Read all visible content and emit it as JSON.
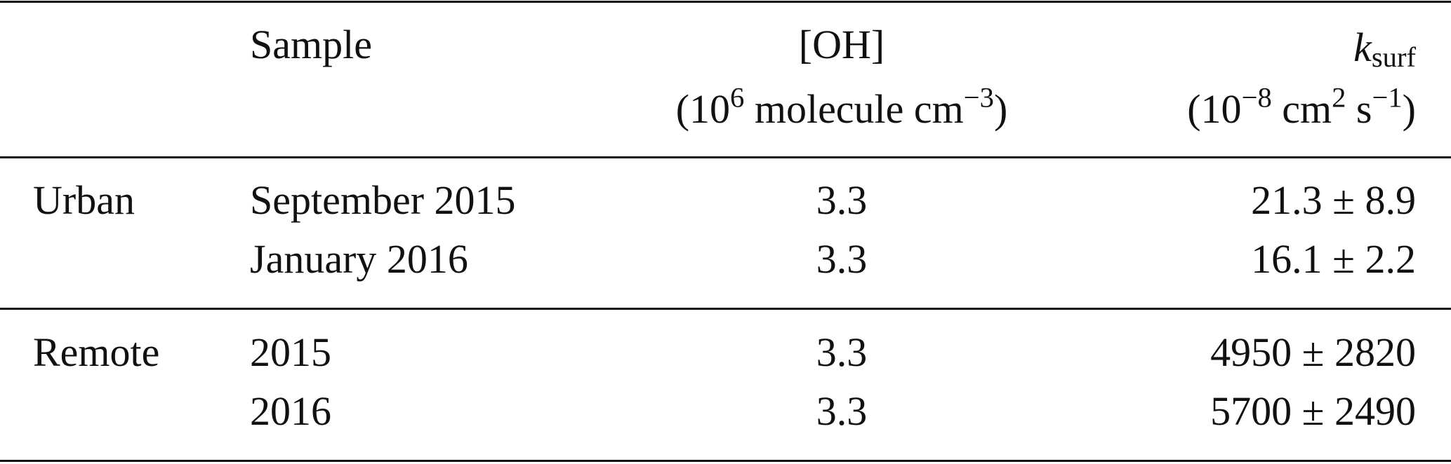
{
  "table": {
    "header": {
      "sample": "Sample",
      "oh": {
        "name": "[OH]",
        "unit": [
          "(10",
          "6",
          " molecule cm",
          "−3",
          ")"
        ]
      },
      "k_surf": {
        "symbol": "k",
        "subscript": "surf",
        "unit": [
          "(10",
          "−8",
          " cm",
          "2",
          " s",
          "−1",
          ")"
        ]
      }
    },
    "groups": [
      {
        "name": "Urban",
        "rows": [
          {
            "sample": "September 2015",
            "oh": "3.3",
            "k_surf": "21.3 ± 8.9"
          },
          {
            "sample": "January 2016",
            "oh": "3.3",
            "k_surf": "16.1 ± 2.2"
          }
        ]
      },
      {
        "name": "Remote",
        "rows": [
          {
            "sample": "2015",
            "oh": "3.3",
            "k_surf": "4950 ± 2820"
          },
          {
            "sample": "2016",
            "oh": "3.3",
            "k_surf": "5700 ± 2490"
          }
        ]
      }
    ]
  }
}
